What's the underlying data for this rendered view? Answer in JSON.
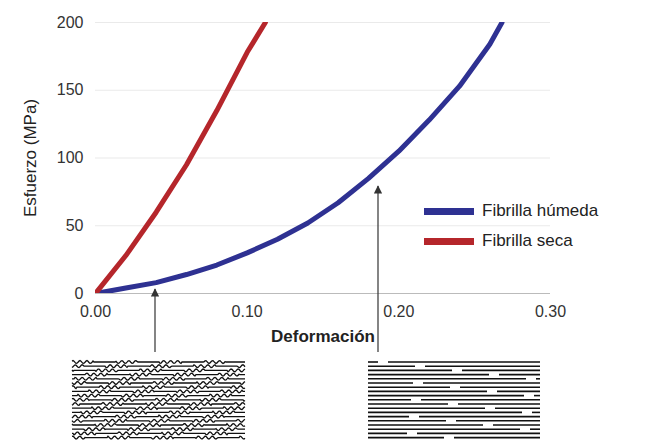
{
  "chart_data": {
    "type": "line",
    "x_label": "Deformación",
    "y_label": "Esfuerzo (MPa)",
    "xlim": [
      0,
      0.3
    ],
    "xticks": [
      {
        "value": 0,
        "label": "0.00"
      },
      {
        "value": 0.1,
        "label": "0.10"
      },
      {
        "value": 0.2,
        "label": "0.20"
      },
      {
        "value": 0.3,
        "label": "0.30"
      }
    ],
    "ylim": [
      0,
      200
    ],
    "yticks": [
      0,
      50,
      100,
      150,
      200
    ],
    "grid": true,
    "legend": "right",
    "series": [
      {
        "name": "Fibrilla húmeda",
        "color": "#2e3192",
        "x": [
          0,
          0.02,
          0.04,
          0.06,
          0.08,
          0.1,
          0.12,
          0.14,
          0.16,
          0.18,
          0.2,
          0.22,
          0.24,
          0.26,
          0.268
        ],
        "values": [
          0,
          4,
          8,
          14,
          21,
          30,
          40,
          52,
          67,
          85,
          105,
          128,
          153,
          184,
          200
        ]
      },
      {
        "name": "Fibrilla seca",
        "color": "#b5262b",
        "x": [
          0,
          0.02,
          0.04,
          0.06,
          0.08,
          0.1,
          0.112
        ],
        "values": [
          0,
          28,
          60,
          95,
          135,
          178,
          200
        ]
      }
    ]
  }
}
